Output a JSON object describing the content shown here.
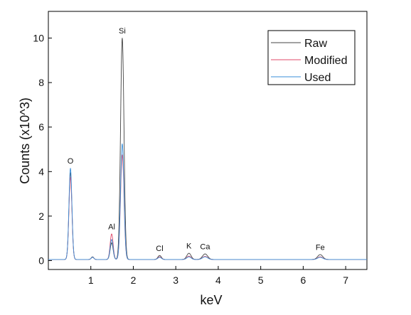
{
  "chart_data": {
    "type": "line",
    "title": "",
    "xlabel": "keV",
    "ylabel": "Counts (x10^3)",
    "xlim": [
      0,
      7.5
    ],
    "ylim": [
      -0.4,
      11.2
    ],
    "xticks": [
      1,
      2,
      3,
      4,
      5,
      6,
      7
    ],
    "yticks": [
      0,
      2,
      4,
      6,
      8,
      10
    ],
    "grid": false,
    "legend_position": "top-right",
    "series": [
      {
        "name": "Raw",
        "color": "#444444",
        "baseline": 0.05,
        "peaks": [
          {
            "x": 0.52,
            "y": 3.9,
            "w": 0.035
          },
          {
            "x": 1.04,
            "y": 0.12,
            "w": 0.03
          },
          {
            "x": 1.49,
            "y": 0.75,
            "w": 0.035
          },
          {
            "x": 1.74,
            "y": 9.95,
            "w": 0.04
          },
          {
            "x": 2.62,
            "y": 0.18,
            "w": 0.04
          },
          {
            "x": 3.31,
            "y": 0.28,
            "w": 0.05
          },
          {
            "x": 3.69,
            "y": 0.25,
            "w": 0.06
          },
          {
            "x": 6.4,
            "y": 0.22,
            "w": 0.06
          }
        ]
      },
      {
        "name": "Modified",
        "color": "#e04a6a",
        "baseline": 0.05,
        "peaks": [
          {
            "x": 0.52,
            "y": 3.7,
            "w": 0.035
          },
          {
            "x": 1.04,
            "y": 0.1,
            "w": 0.03
          },
          {
            "x": 1.49,
            "y": 1.15,
            "w": 0.035
          },
          {
            "x": 1.74,
            "y": 4.7,
            "w": 0.04
          },
          {
            "x": 2.62,
            "y": 0.12,
            "w": 0.04
          },
          {
            "x": 3.31,
            "y": 0.15,
            "w": 0.05
          },
          {
            "x": 3.69,
            "y": 0.14,
            "w": 0.06
          },
          {
            "x": 6.4,
            "y": 0.12,
            "w": 0.06
          }
        ]
      },
      {
        "name": "Used",
        "color": "#3a8fd9",
        "baseline": 0.05,
        "peaks": [
          {
            "x": 0.52,
            "y": 4.1,
            "w": 0.035
          },
          {
            "x": 1.04,
            "y": 0.1,
            "w": 0.03
          },
          {
            "x": 1.49,
            "y": 0.9,
            "w": 0.035
          },
          {
            "x": 1.74,
            "y": 5.2,
            "w": 0.04
          },
          {
            "x": 2.62,
            "y": 0.1,
            "w": 0.04
          },
          {
            "x": 3.31,
            "y": 0.12,
            "w": 0.05
          },
          {
            "x": 3.69,
            "y": 0.12,
            "w": 0.06
          },
          {
            "x": 6.4,
            "y": 0.1,
            "w": 0.06
          }
        ]
      }
    ],
    "annotations": [
      {
        "text": "O",
        "x": 0.52,
        "y": 4.1
      },
      {
        "text": "Si",
        "x": 1.74,
        "y": 9.95
      },
      {
        "text": "Al",
        "x": 1.49,
        "y": 1.15
      },
      {
        "text": "Cl",
        "x": 2.62,
        "y": 0.18
      },
      {
        "text": "K",
        "x": 3.31,
        "y": 0.28
      },
      {
        "text": "Ca",
        "x": 3.69,
        "y": 0.25
      },
      {
        "text": "Fe",
        "x": 6.4,
        "y": 0.22
      }
    ]
  }
}
